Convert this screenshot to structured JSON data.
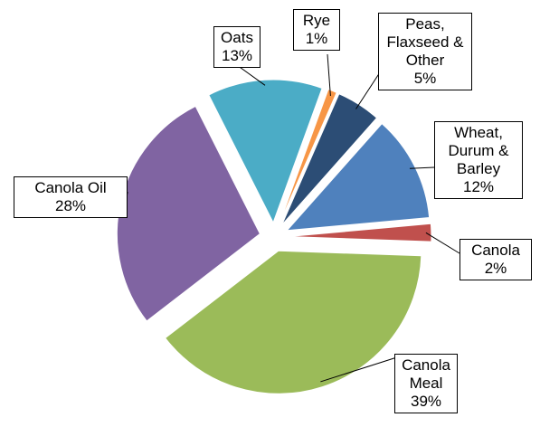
{
  "chart_data": {
    "type": "pie",
    "categories": [
      "Rye",
      "Peas, Flaxseed & Other",
      "Wheat, Durum & Barley",
      "Canola",
      "Canola Meal",
      "Canola Oil",
      "Oats"
    ],
    "values": [
      1,
      5,
      12,
      2,
      39,
      28,
      13
    ],
    "value_labels": [
      "1%",
      "5%",
      "12%",
      "2%",
      "39%",
      "28%",
      "13%"
    ],
    "colors": [
      "#f79646",
      "#2c4d75",
      "#4f81bd",
      "#c0504d",
      "#9bbb59",
      "#8064a2",
      "#4bacc6"
    ]
  }
}
